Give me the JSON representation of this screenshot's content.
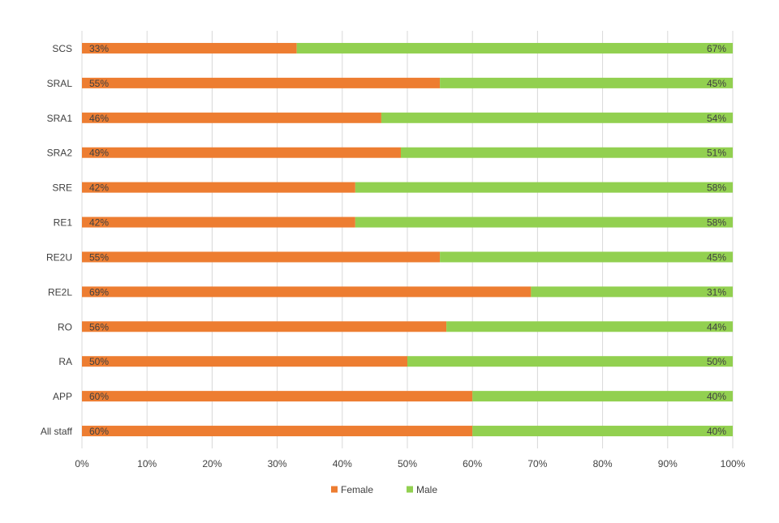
{
  "chart_data": {
    "type": "bar",
    "orientation": "horizontal",
    "stacked": true,
    "percent_stacked": true,
    "title": "",
    "xlabel": "",
    "ylabel": "",
    "categories": [
      "SCS",
      "SRAL",
      "SRA1",
      "SRA2",
      "SRE",
      "RE1",
      "RE2U",
      "RE2L",
      "RO",
      "RA",
      "APP",
      "All staff"
    ],
    "series": [
      {
        "name": "Female",
        "color": "#ed7d31",
        "values": [
          33,
          55,
          46,
          49,
          42,
          42,
          55,
          69,
          56,
          50,
          60,
          60
        ],
        "labels": [
          "33%",
          "55%",
          "46%",
          "49%",
          "42%",
          "42%",
          "55%",
          "69%",
          "56%",
          "50%",
          "60%",
          "60%"
        ]
      },
      {
        "name": "Male",
        "color": "#92d050",
        "values": [
          67,
          45,
          54,
          51,
          58,
          58,
          45,
          31,
          44,
          50,
          40,
          40
        ],
        "labels": [
          "67%",
          "45%",
          "54%",
          "51%",
          "58%",
          "58%",
          "45%",
          "31%",
          "44%",
          "50%",
          "40%",
          "40%"
        ]
      }
    ],
    "xlim": [
      0,
      100
    ],
    "x_ticks": [
      "0%",
      "10%",
      "20%",
      "30%",
      "40%",
      "50%",
      "60%",
      "70%",
      "80%",
      "90%",
      "100%"
    ],
    "grid": true,
    "legend_position": "bottom",
    "gridline_color": "#d9d9d9",
    "text_color": "#404040"
  }
}
